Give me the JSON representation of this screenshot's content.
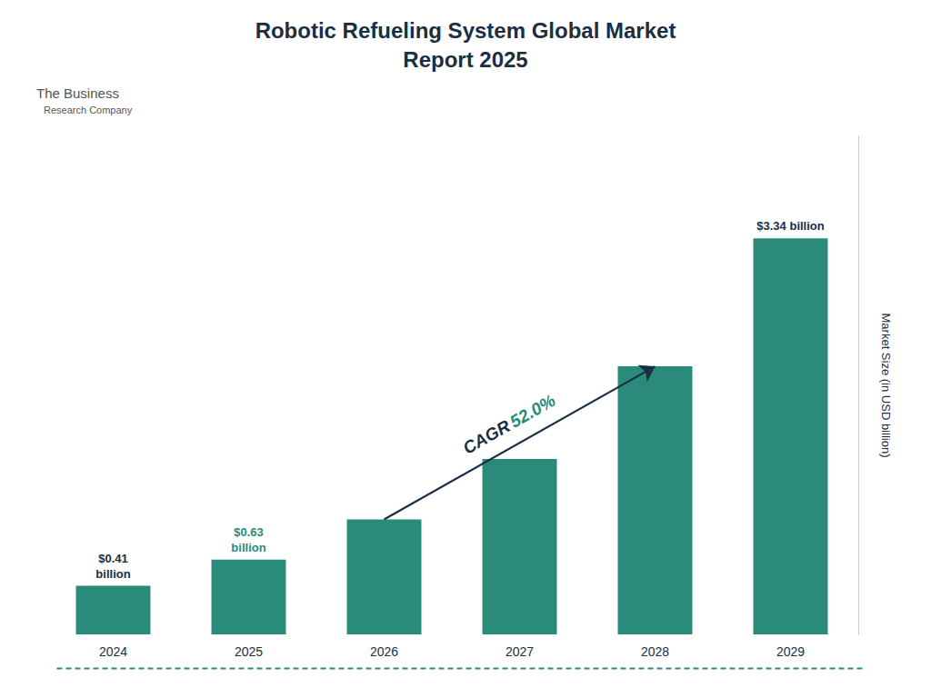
{
  "chart_data": {
    "type": "bar",
    "title": "Robotic Refueling System Global Market\nReport 2025",
    "categories": [
      "2024",
      "2025",
      "2026",
      "2027",
      "2028",
      "2029"
    ],
    "values": [
      0.41,
      0.63,
      0.97,
      1.48,
      2.26,
      3.34
    ],
    "value_labels": [
      "$0.41\nbillion",
      "$0.63\nbillion",
      null,
      null,
      null,
      "$3.34 billion"
    ],
    "data_labels": true,
    "color": "#2a8b7b",
    "ylabel": "Market Size (in USD billion)",
    "ylim": [
      0,
      4.2
    ],
    "tick_labels": "x",
    "grid": false,
    "annotations": [
      "CAGR 52.0%",
      "The Business",
      "Research Company"
    ]
  }
}
